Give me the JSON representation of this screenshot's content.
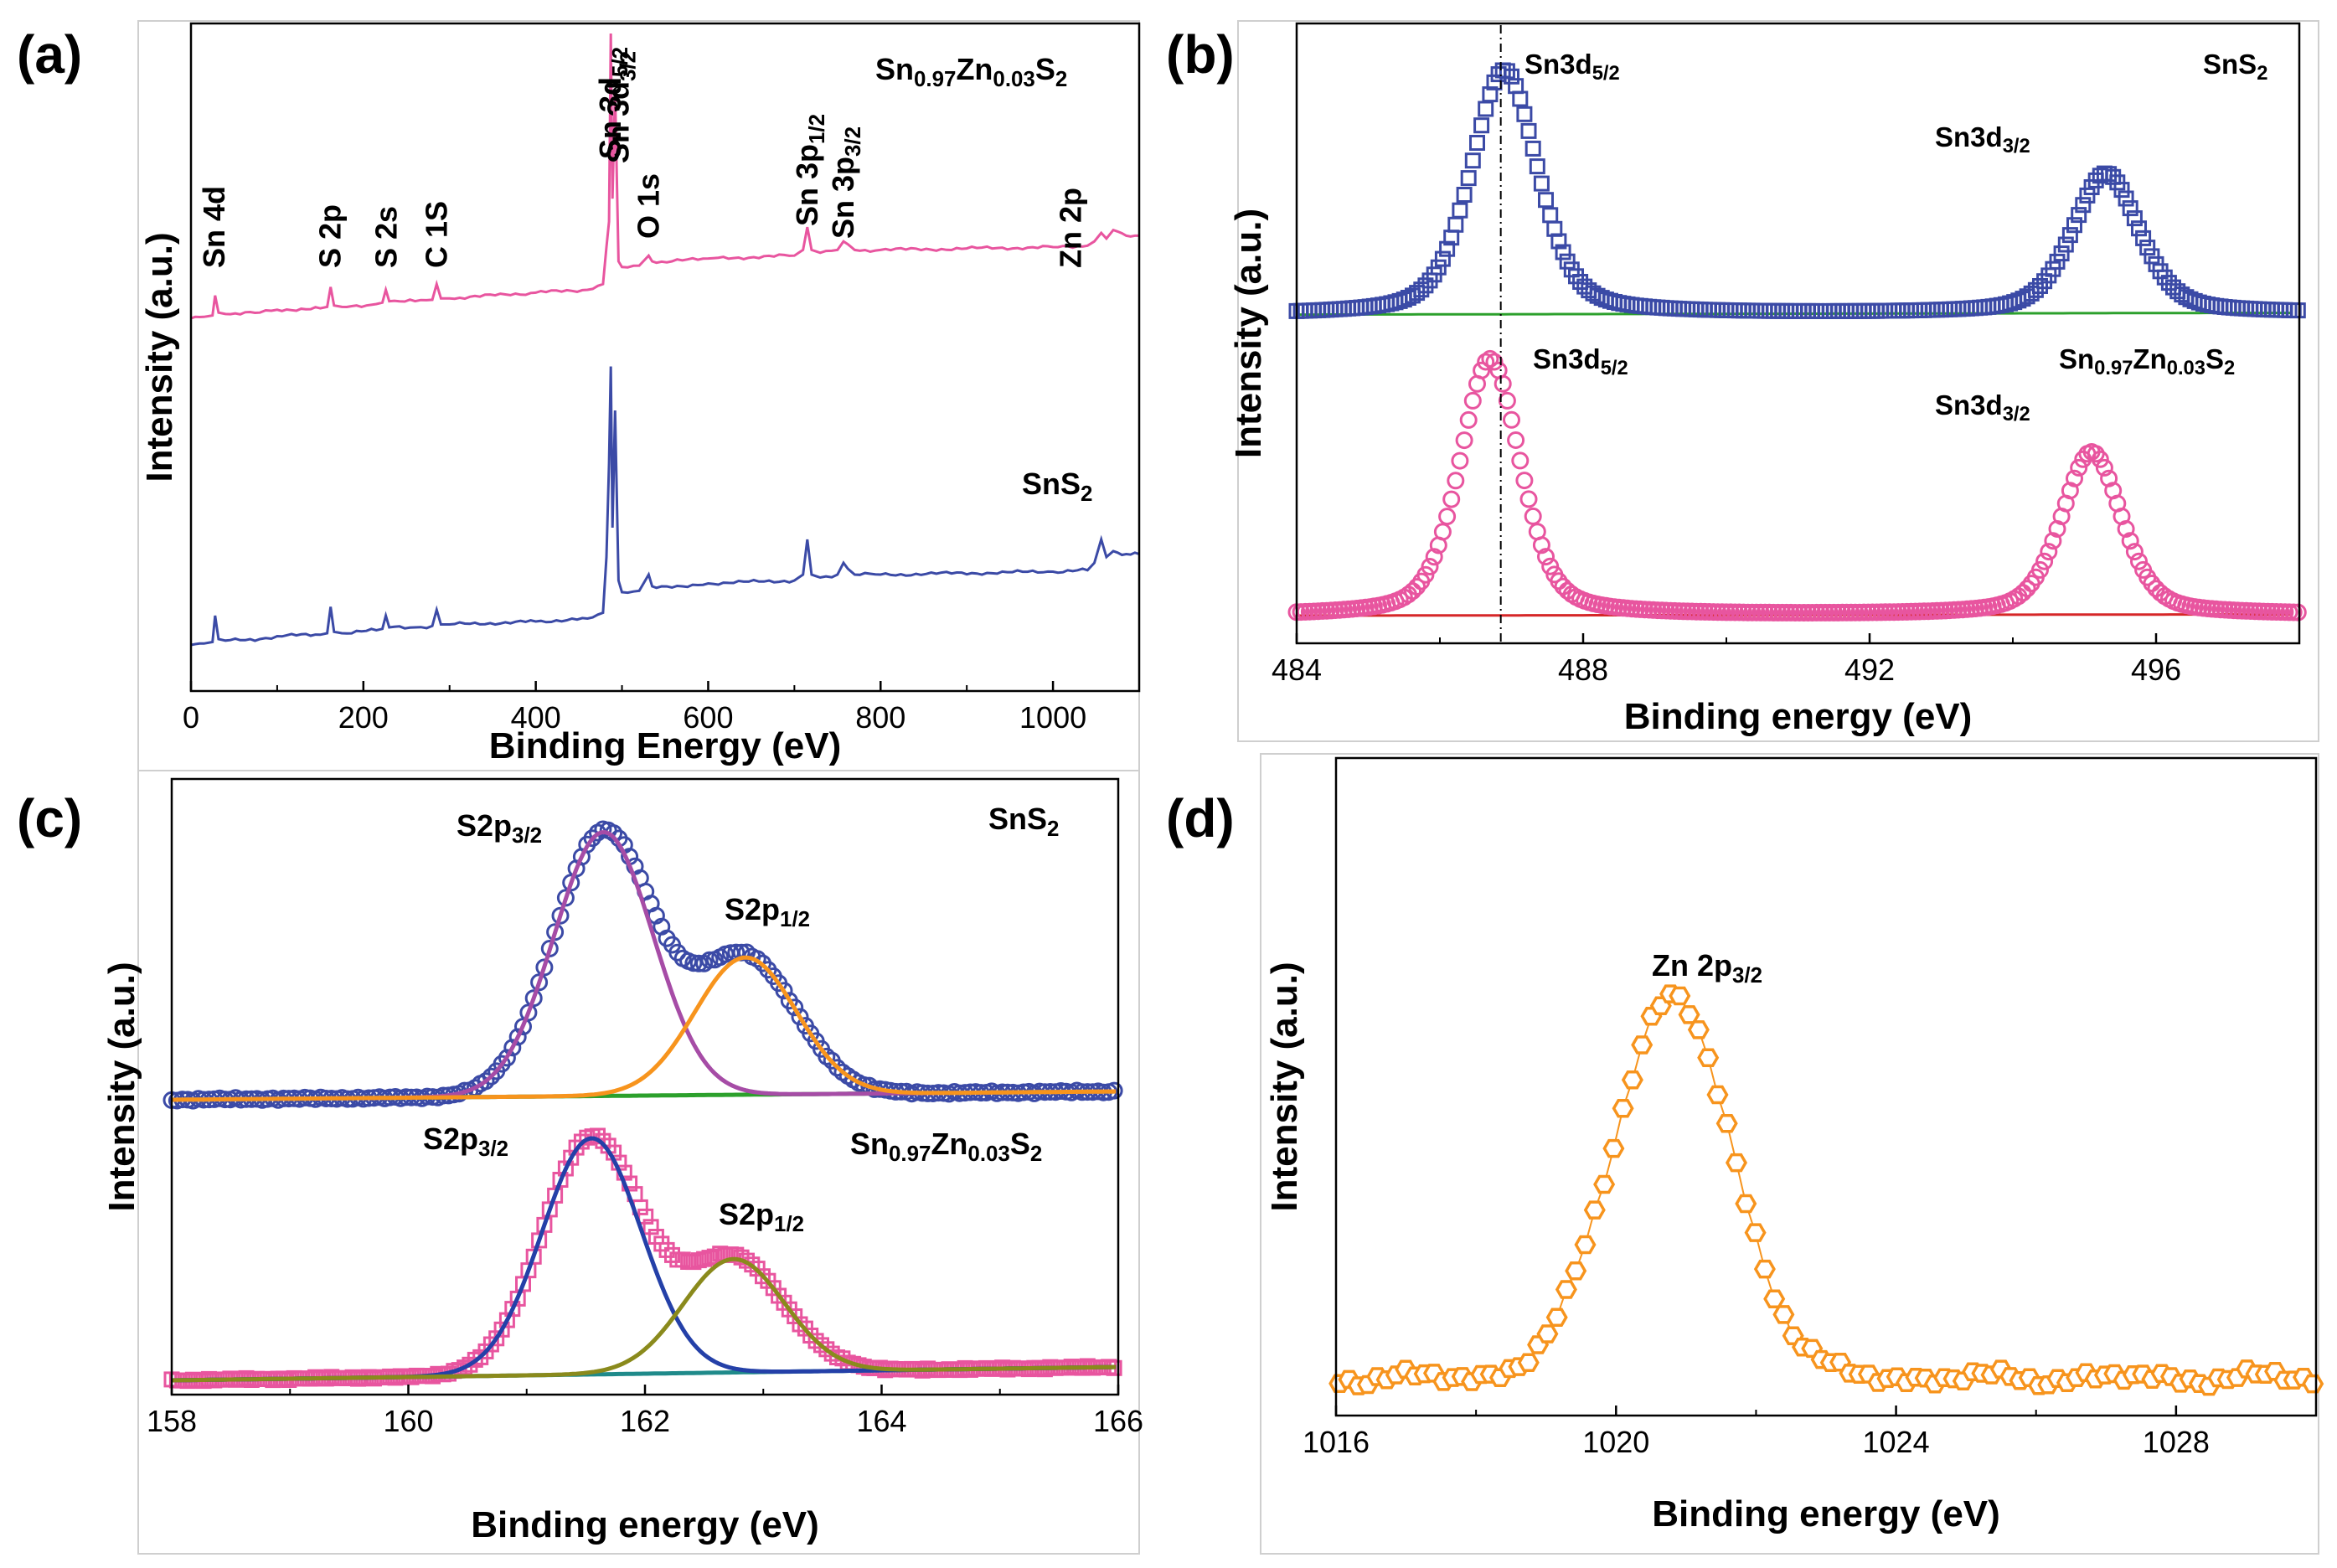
{
  "colors": {
    "pink": "#e8559f",
    "blue": "#3b4aa6",
    "green": "#2ca02c",
    "red": "#d62728",
    "orange": "#f7941d",
    "magenta": "#a64ca6",
    "navy": "#2440a8",
    "olive": "#8a8a1c",
    "teal": "#1f8a8a",
    "panel_border": "#cfcfcf"
  },
  "chart_data": [
    {
      "id": "a",
      "panel_label": "(a)",
      "type": "line",
      "xlabel": "Binding Energy (eV)",
      "ylabel": "Intensity (a.u.)",
      "xlim": [
        0,
        1100
      ],
      "xticks": [
        "0",
        "200",
        "400",
        "600",
        "800",
        "1000"
      ],
      "xtick_values": [
        0,
        200,
        400,
        600,
        800,
        1000
      ],
      "series": [
        {
          "name": "Sn0.97Zn0.03S2",
          "color": "pink",
          "x": [
            0,
            15,
            25,
            28,
            32,
            40,
            80,
            100,
            150,
            158,
            162,
            166,
            175,
            215,
            222,
            226,
            230,
            260,
            280,
            285,
            290,
            300,
            400,
            460,
            478,
            482,
            485,
            487,
            489,
            492,
            496,
            500,
            520,
            531,
            535,
            540,
            600,
            700,
            710,
            715,
            720,
            730,
            750,
            757,
            762,
            770,
            800,
            1000,
            1040,
            1048,
            1056,
            1062,
            1070,
            1085,
            1100
          ],
          "y": [
            0,
            0.5,
            1,
            8,
            2,
            1.5,
            2,
            3,
            3.5,
            4,
            11,
            4.5,
            4,
            5,
            5.5,
            10,
            6,
            6,
            6.5,
            12,
            7,
            7,
            9,
            10,
            12,
            25,
            34,
            100,
            42,
            80,
            20,
            18,
            18.5,
            22,
            20,
            19.5,
            21,
            22,
            24,
            32,
            24,
            23,
            24,
            27,
            26,
            24,
            24,
            25,
            25.5,
            27,
            30,
            28,
            31,
            29,
            29
          ]
        },
        {
          "name": "SnS2",
          "color": "blue",
          "x": [
            0,
            15,
            25,
            28,
            32,
            40,
            80,
            100,
            150,
            158,
            162,
            166,
            175,
            215,
            222,
            226,
            230,
            260,
            280,
            285,
            290,
            300,
            400,
            460,
            478,
            482,
            485,
            487,
            489,
            492,
            496,
            500,
            520,
            531,
            535,
            540,
            600,
            700,
            710,
            715,
            720,
            730,
            750,
            757,
            762,
            770,
            800,
            1000,
            1040,
            1048,
            1056,
            1062,
            1070,
            1085,
            1100
          ],
          "y": [
            0,
            0.5,
            1,
            10,
            2,
            1.5,
            2,
            3,
            3.5,
            4,
            13,
            4.5,
            4,
            5,
            5.5,
            10,
            6,
            6,
            6.5,
            12,
            7,
            7,
            8,
            9,
            11,
            30,
            62,
            95,
            40,
            80,
            22,
            18,
            18.5,
            24,
            20,
            19.5,
            21,
            22,
            24,
            36,
            24,
            23,
            24,
            28,
            26,
            24,
            24,
            25,
            25.5,
            28,
            36,
            30,
            32,
            31,
            31
          ]
        }
      ],
      "annotations": [
        {
          "text": "Sn 4d",
          "at": 27
        },
        {
          "text": "S 2p",
          "at": 162
        },
        {
          "text": "S 2s",
          "at": 227
        },
        {
          "text": "C 1S",
          "at": 285
        },
        {
          "text": "Sn 3d",
          "sub": "5/2",
          "at": 487
        },
        {
          "text": "Sn 3d",
          "sub": "3/2",
          "at": 496
        },
        {
          "text": "O 1s",
          "at": 531
        },
        {
          "text": "Sn 3p",
          "sub": "1/2",
          "at": 715
        },
        {
          "text": "Sn 3p",
          "sub": "3/2",
          "at": 757
        },
        {
          "text": "Zn 2p",
          "at": 1021
        }
      ],
      "legend": [
        {
          "parts": [
            [
              "Sn",
              ""
            ],
            [
              "0.97",
              "sub"
            ],
            [
              "Zn",
              ""
            ],
            [
              "0.03",
              "sub"
            ],
            [
              "S",
              ""
            ],
            [
              "2",
              "sub"
            ]
          ]
        },
        {
          "parts": [
            [
              "SnS",
              ""
            ],
            [
              "2",
              "sub"
            ]
          ]
        }
      ]
    },
    {
      "id": "b",
      "panel_label": "(b)",
      "type": "scatter",
      "xlabel": "Binding energy (eV)",
      "ylabel": "Intensity (a.u.)",
      "xlim": [
        484,
        498
      ],
      "xticks": [
        "484",
        "488",
        "492",
        "496"
      ],
      "xtick_values": [
        484,
        488,
        492,
        496
      ],
      "series": [
        {
          "name": "SnS2",
          "color": "blue",
          "marker": "square",
          "peaks": [
            [
              486.9,
              0.28
            ],
            [
              495.3,
              0.16
            ]
          ],
          "widths": [
            0.55,
            0.55
          ],
          "base": [
            0.03,
            0.055
          ]
        },
        {
          "name": "Sn0.97Zn0.03S2",
          "color": "pink",
          "marker": "circle",
          "peaks": [
            [
              486.7,
              0.3
            ],
            [
              495.1,
              0.19
            ]
          ],
          "widths": [
            0.5,
            0.5
          ],
          "base": [
            0.0,
            0.018
          ]
        }
      ],
      "reference_line_x": 486.85,
      "annotations": [
        {
          "parts": [
            [
              "Sn3d",
              ""
            ],
            [
              "5/2",
              "sub"
            ]
          ]
        },
        {
          "parts": [
            [
              "Sn3d",
              ""
            ],
            [
              "3/2",
              "sub"
            ]
          ]
        },
        {
          "parts": [
            [
              "SnS",
              ""
            ],
            [
              "2",
              "sub"
            ]
          ]
        },
        {
          "parts": [
            [
              "Sn3d",
              ""
            ],
            [
              "5/2",
              "sub"
            ]
          ]
        },
        {
          "parts": [
            [
              "Sn3d",
              ""
            ],
            [
              "3/2",
              "sub"
            ]
          ]
        },
        {
          "parts": [
            [
              "Sn",
              ""
            ],
            [
              "0.97",
              "sub"
            ],
            [
              "Zn",
              ""
            ],
            [
              "0.03",
              "sub"
            ],
            [
              "S",
              ""
            ],
            [
              "2",
              "sub"
            ]
          ]
        }
      ]
    },
    {
      "id": "c",
      "panel_label": "(c)",
      "type": "scatter",
      "xlabel": "Binding energy (eV)",
      "ylabel": "Intensity (a.u.)",
      "xlim": [
        158,
        166
      ],
      "xticks": [
        "158",
        "160",
        "162",
        "164",
        "166"
      ],
      "xtick_values": [
        158,
        160,
        162,
        164,
        166
      ],
      "series": [
        {
          "name": "SnS2",
          "marker": "circle",
          "color": "blue",
          "fit_colors": [
            "magenta",
            "orange",
            "green"
          ],
          "peaks": [
            [
              161.65,
              1.0
            ],
            [
              162.85,
              0.52
            ]
          ],
          "width": 0.42
        },
        {
          "name": "Sn0.97Zn0.03S2",
          "marker": "square",
          "color": "pink",
          "fit_colors": [
            "navy",
            "olive",
            "teal"
          ],
          "peaks": [
            [
              161.55,
              1.0
            ],
            [
              162.75,
              0.48
            ]
          ],
          "width": 0.42
        }
      ],
      "annotations": [
        {
          "parts": [
            [
              "S2p",
              ""
            ],
            [
              "3/2",
              "sub"
            ]
          ]
        },
        {
          "parts": [
            [
              "S2p",
              ""
            ],
            [
              "1/2",
              "sub"
            ]
          ]
        },
        {
          "parts": [
            [
              "SnS",
              ""
            ],
            [
              "2",
              "sub"
            ]
          ]
        },
        {
          "parts": [
            [
              "S2p",
              ""
            ],
            [
              "3/2",
              "sub"
            ]
          ]
        },
        {
          "parts": [
            [
              "S2p",
              ""
            ],
            [
              "1/2",
              "sub"
            ]
          ]
        },
        {
          "parts": [
            [
              "Sn",
              ""
            ],
            [
              "0.97",
              "sub"
            ],
            [
              "Zn",
              ""
            ],
            [
              "0.03",
              "sub"
            ],
            [
              "S",
              ""
            ],
            [
              "2",
              "sub"
            ]
          ]
        }
      ]
    },
    {
      "id": "d",
      "panel_label": "(d)",
      "type": "scatter",
      "xlabel": "Binding energy (eV)",
      "ylabel": "Intensity (a.u.)",
      "xlim": [
        1016,
        1030
      ],
      "xticks": [
        "1016",
        "1020",
        "1024",
        "1028"
      ],
      "xtick_values": [
        1016,
        1020,
        1024,
        1028
      ],
      "series": [
        {
          "name": "Zn 2p3/2",
          "marker": "hexagon",
          "color": "orange",
          "peak": [
            1020.8,
            1.0
          ],
          "width": 0.85
        }
      ],
      "annotations": [
        {
          "parts": [
            [
              "Zn 2p",
              ""
            ],
            [
              "3/2",
              "sub"
            ]
          ]
        }
      ]
    }
  ]
}
